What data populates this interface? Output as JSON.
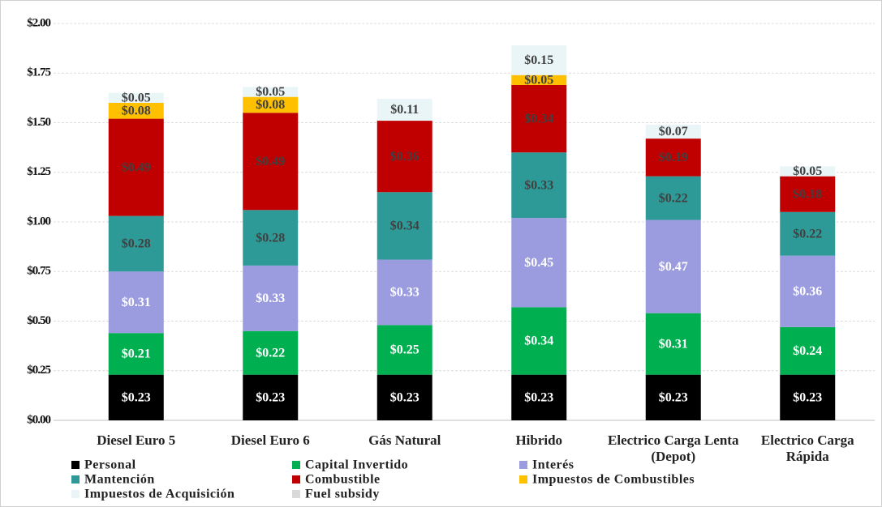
{
  "chart_data": {
    "type": "stacked_bar",
    "categories": [
      "Diesel Euro 5",
      "Diesel Euro 6",
      "Gás Natural",
      "Hibrido",
      "Electrico Carga Lenta (Depot)",
      "Electrico Carga Rápida"
    ],
    "ylim": [
      0,
      2
    ],
    "yticks": [
      {
        "value": 0,
        "label": "$0.00"
      },
      {
        "value": 0.25,
        "label": "$0.25"
      },
      {
        "value": 0.5,
        "label": "$0.50"
      },
      {
        "value": 0.75,
        "label": "$0.75"
      },
      {
        "value": 1,
        "label": "$1.00"
      },
      {
        "value": 1.25,
        "label": "$1.25"
      },
      {
        "value": 1.5,
        "label": "$1.50"
      },
      {
        "value": 1.75,
        "label": "$1.75"
      },
      {
        "value": 2,
        "label": "$2.00"
      }
    ],
    "grid": true,
    "series": [
      {
        "name": "Personal",
        "color": "#000000",
        "label_color": "#ffffff",
        "values": [
          0.23,
          0.23,
          0.23,
          0.23,
          0.23,
          0.23
        ],
        "value_labels": [
          "$0.23",
          "$0.23",
          "$0.23",
          "$0.23",
          "$0.23",
          "$0.23"
        ]
      },
      {
        "name": "Capital Invertido",
        "color": "#00b050",
        "label_color": "#ffffff",
        "values": [
          0.21,
          0.22,
          0.25,
          0.34,
          0.31,
          0.24
        ],
        "value_labels": [
          "$0.21",
          "$0.22",
          "$0.25",
          "$0.34",
          "$0.31",
          "$0.24"
        ]
      },
      {
        "name": "Interés",
        "color": "#9b9be0",
        "label_color": "#ffffff",
        "values": [
          0.31,
          0.33,
          0.33,
          0.45,
          0.47,
          0.36
        ],
        "value_labels": [
          "$0.31",
          "$0.33",
          "$0.33",
          "$0.45",
          "$0.47",
          "$0.36"
        ]
      },
      {
        "name": "Mantención",
        "color": "#2e9a98",
        "label_color": "#404040",
        "values": [
          0.28,
          0.28,
          0.34,
          0.33,
          0.22,
          0.22
        ],
        "value_labels": [
          "$0.28",
          "$0.28",
          "$0.34",
          "$0.33",
          "$0.22",
          "$0.22"
        ]
      },
      {
        "name": "Combustible",
        "color": "#c00000",
        "label_color": "#404040",
        "values": [
          0.49,
          0.49,
          0.36,
          0.34,
          0.19,
          0.18
        ],
        "value_labels": [
          "$0.49",
          "$0.49",
          "$0.36",
          "$0.34",
          "$0.19",
          "$0.18"
        ]
      },
      {
        "name": "Impuestos de Combustibles",
        "color": "#ffc000",
        "label_color": "#404040",
        "values": [
          0.08,
          0.08,
          null,
          0.05,
          null,
          null
        ],
        "value_labels": [
          "$0.08",
          "$0.08",
          null,
          "$0.05",
          null,
          null
        ]
      },
      {
        "name": "Impuestos de Acquisición",
        "color": "#e9f5f7",
        "label_color": "#404040",
        "values": [
          0.05,
          0.05,
          0.11,
          0.15,
          0.07,
          0.05
        ],
        "value_labels": [
          "$0.05",
          "$0.05",
          "$0.11",
          "$0.15",
          "$0.07",
          "$0.05"
        ]
      },
      {
        "name": "Fuel subsidy",
        "color": "#d9d9d9",
        "label_color": "#404040",
        "values": [
          null,
          null,
          null,
          null,
          null,
          null
        ]
      }
    ]
  }
}
